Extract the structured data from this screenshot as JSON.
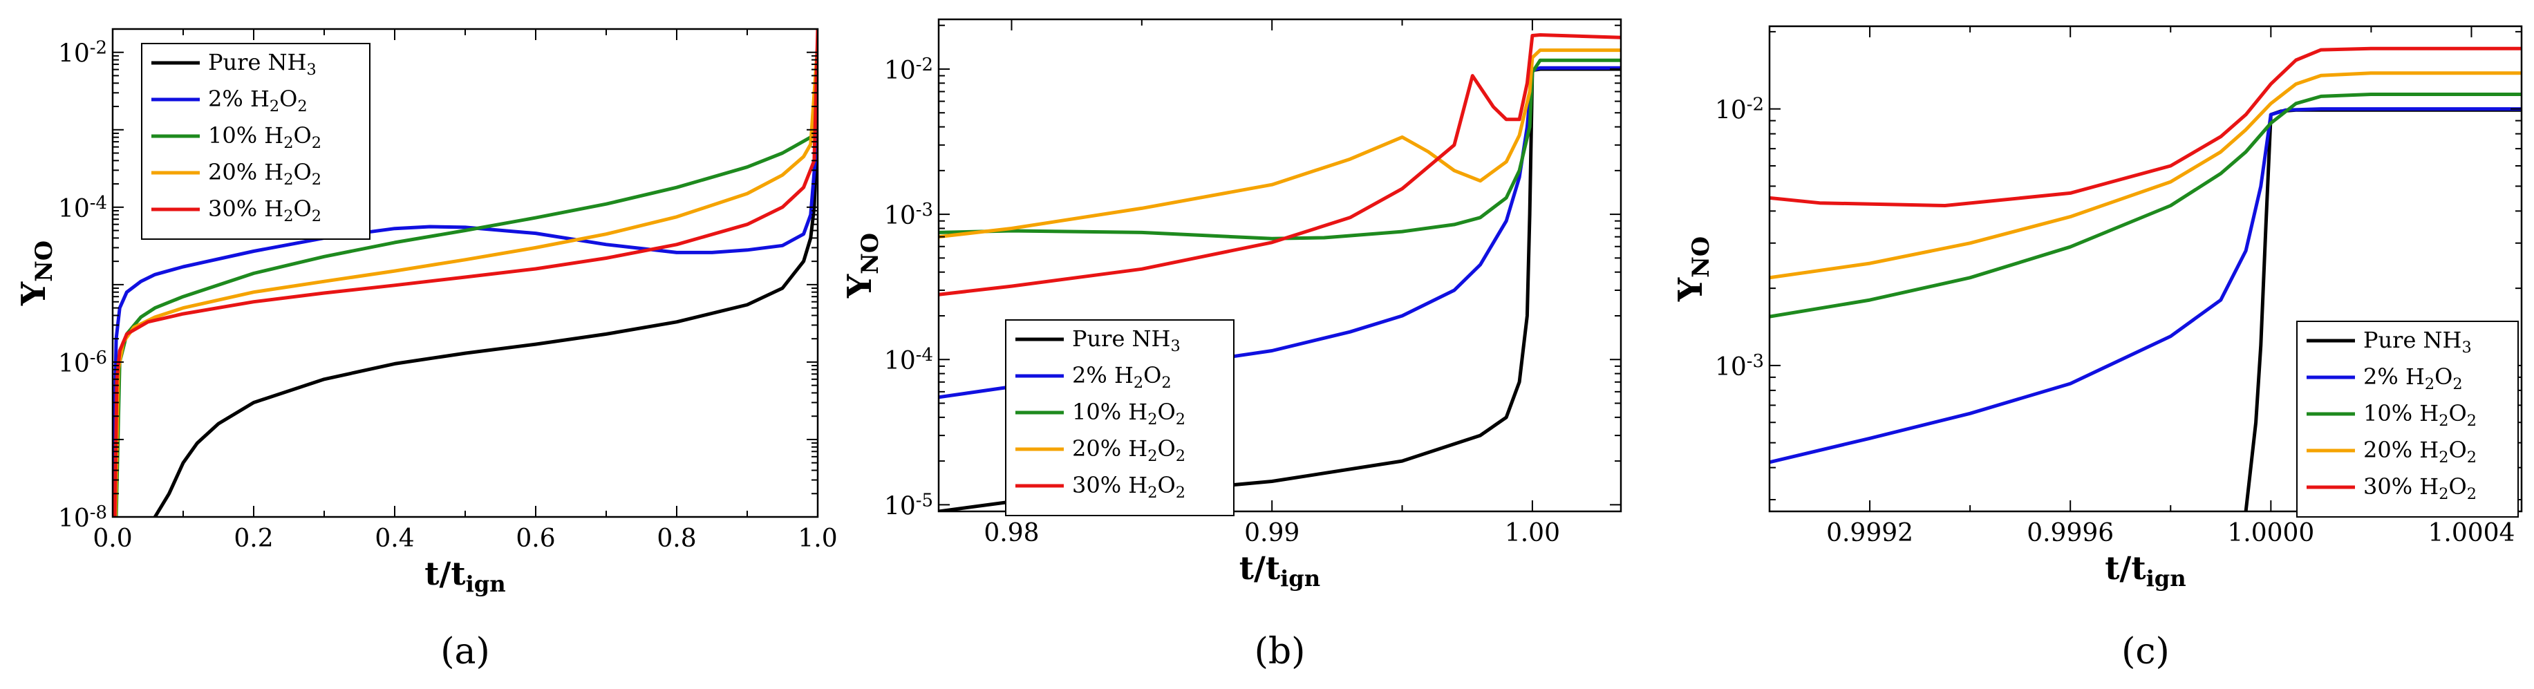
{
  "colors": {
    "pure": "#000000",
    "h2o2_2": "#1010e0",
    "h2o2_10": "#1e8a1e",
    "h2o2_20": "#f5a300",
    "h2o2_30": "#e81414"
  },
  "chart_data": [
    {
      "type": "line",
      "panel_label": "(a)",
      "xlabel": "t/t",
      "xlabel_sub": "ign",
      "ylabel": "Y",
      "ylabel_sub": "NO",
      "yscale": "log",
      "xlim": [
        0.0,
        1.0
      ],
      "ylim": [
        1e-08,
        0.02
      ],
      "xticks": [
        0.0,
        0.2,
        0.4,
        0.6,
        0.8,
        1.0
      ],
      "xtick_labels": [
        "0.0",
        "0.2",
        "0.4",
        "0.6",
        "0.8",
        "1.0"
      ],
      "yticks": [
        1e-08,
        1e-06,
        0.0001,
        0.01
      ],
      "ytick_mantissa": [
        "10",
        "10",
        "10",
        "10"
      ],
      "ytick_exp": [
        "-8",
        "-6",
        "-4",
        "-2"
      ],
      "legend_position": "top-left",
      "series": [
        {
          "name": "Pure NH",
          "sub": "3",
          "color_key": "pure",
          "x": [
            0.06,
            0.08,
            0.1,
            0.12,
            0.15,
            0.2,
            0.3,
            0.4,
            0.5,
            0.6,
            0.7,
            0.8,
            0.9,
            0.95,
            0.98,
            0.99,
            0.995,
            0.998,
            1.0
          ],
          "y": [
            1e-08,
            2e-08,
            5e-08,
            9e-08,
            1.6e-07,
            3e-07,
            6e-07,
            9.5e-07,
            1.3e-06,
            1.7e-06,
            2.3e-06,
            3.3e-06,
            5.5e-06,
            9e-06,
            2e-05,
            4e-05,
            0.0001,
            0.0005,
            0.015
          ]
        },
        {
          "name": "  2% H",
          "sub": "2",
          "name2": "O",
          "sub2": "2",
          "color_key": "h2o2_2",
          "x": [
            0.0,
            0.005,
            0.01,
            0.02,
            0.04,
            0.06,
            0.1,
            0.2,
            0.3,
            0.4,
            0.45,
            0.5,
            0.6,
            0.7,
            0.8,
            0.85,
            0.9,
            0.95,
            0.98,
            0.99,
            1.0
          ],
          "y": [
            1e-08,
            2e-06,
            5e-06,
            8e-06,
            1.1e-05,
            1.35e-05,
            1.7e-05,
            2.7e-05,
            4e-05,
            5.3e-05,
            5.6e-05,
            5.5e-05,
            4.6e-05,
            3.3e-05,
            2.6e-05,
            2.6e-05,
            2.8e-05,
            3.2e-05,
            4.5e-05,
            8e-05,
            0.001
          ]
        },
        {
          "name": "10% H",
          "sub": "2",
          "name2": "O",
          "sub2": "2",
          "color_key": "h2o2_10",
          "x": [
            0.005,
            0.01,
            0.02,
            0.04,
            0.06,
            0.1,
            0.2,
            0.3,
            0.4,
            0.5,
            0.6,
            0.7,
            0.8,
            0.9,
            0.95,
            0.99,
            1.0
          ],
          "y": [
            1e-08,
            1e-06,
            2.3e-06,
            3.8e-06,
            5e-06,
            7e-06,
            1.4e-05,
            2.3e-05,
            3.5e-05,
            5e-05,
            7.3e-05,
            0.00011,
            0.00018,
            0.00033,
            0.0005,
            0.0008,
            0.0012
          ]
        },
        {
          "name": "20% H",
          "sub": "2",
          "name2": "O",
          "sub2": "2",
          "color_key": "h2o2_20",
          "x": [
            0.004,
            0.008,
            0.015,
            0.03,
            0.06,
            0.1,
            0.2,
            0.3,
            0.4,
            0.5,
            0.6,
            0.7,
            0.8,
            0.9,
            0.95,
            0.98,
            0.99,
            1.0
          ],
          "y": [
            1e-08,
            8e-07,
            1.8e-06,
            2.8e-06,
            3.8e-06,
            5e-06,
            8e-06,
            1.1e-05,
            1.5e-05,
            2.1e-05,
            3e-05,
            4.5e-05,
            7.5e-05,
            0.00015,
            0.00026,
            0.00045,
            0.00065,
            0.013
          ]
        },
        {
          "name": "30% H",
          "sub": "2",
          "name2": "O",
          "sub2": "2",
          "color_key": "h2o2_30",
          "x": [
            0.003,
            0.006,
            0.01,
            0.02,
            0.05,
            0.1,
            0.2,
            0.3,
            0.4,
            0.5,
            0.6,
            0.7,
            0.8,
            0.9,
            0.95,
            0.98,
            0.995,
            1.0
          ],
          "y": [
            1e-08,
            6e-07,
            1.4e-06,
            2.3e-06,
            3.3e-06,
            4.2e-06,
            6e-06,
            7.8e-06,
            9.8e-06,
            1.25e-05,
            1.6e-05,
            2.2e-05,
            3.3e-05,
            6e-05,
            0.0001,
            0.00018,
            0.0004,
            0.02
          ]
        }
      ]
    },
    {
      "type": "line",
      "panel_label": "(b)",
      "xlabel": "t/t",
      "xlabel_sub": "ign",
      "ylabel": "Y",
      "ylabel_sub": "NO",
      "yscale": "log",
      "xlim": [
        0.9772,
        1.0034
      ],
      "ylim": [
        9e-06,
        0.022
      ],
      "xticks": [
        0.98,
        0.99,
        1.0
      ],
      "xtick_labels": [
        "0.98",
        "0.99",
        "1.00"
      ],
      "yticks": [
        1e-05,
        0.0001,
        0.001,
        0.01
      ],
      "ytick_mantissa": [
        "10",
        "10",
        "10",
        "10"
      ],
      "ytick_exp": [
        "-5",
        "-4",
        "-3",
        "-2"
      ],
      "legend_position": "bottom-left",
      "series": [
        {
          "name": "Pure NH",
          "sub": "3",
          "color_key": "pure",
          "x": [
            0.9772,
            0.98,
            0.985,
            0.99,
            0.995,
            0.998,
            0.999,
            0.9995,
            0.9998,
            0.9999,
            1.0,
            1.0003,
            1.0034
          ],
          "y": [
            9e-06,
            1.05e-05,
            1.2e-05,
            1.45e-05,
            2e-05,
            3e-05,
            4e-05,
            7e-05,
            0.0002,
            0.001,
            0.0098,
            0.01,
            0.01
          ]
        },
        {
          "name": "  2% H",
          "sub": "2",
          "name2": "O",
          "sub2": "2",
          "color_key": "h2o2_2",
          "x": [
            0.9772,
            0.98,
            0.985,
            0.99,
            0.993,
            0.995,
            0.997,
            0.998,
            0.999,
            0.9995,
            0.9998,
            1.0,
            1.0003,
            1.0034
          ],
          "y": [
            5.5e-05,
            6.5e-05,
            8.5e-05,
            0.000115,
            0.000155,
            0.0002,
            0.0003,
            0.00045,
            0.0009,
            0.0018,
            0.004,
            0.0098,
            0.0102,
            0.0102
          ]
        },
        {
          "name": "10% H",
          "sub": "2",
          "name2": "O",
          "sub2": "2",
          "color_key": "h2o2_10",
          "x": [
            0.9772,
            0.98,
            0.985,
            0.99,
            0.992,
            0.995,
            0.997,
            0.998,
            0.999,
            0.9995,
            0.9999,
            1.0,
            1.0003,
            1.0034
          ],
          "y": [
            0.00075,
            0.00077,
            0.00075,
            0.00068,
            0.00069,
            0.00076,
            0.00085,
            0.00095,
            0.0013,
            0.002,
            0.004,
            0.0095,
            0.0115,
            0.0115
          ]
        },
        {
          "name": "20% H",
          "sub": "2",
          "name2": "O",
          "sub2": "2",
          "color_key": "h2o2_20",
          "x": [
            0.9772,
            0.98,
            0.985,
            0.99,
            0.993,
            0.995,
            0.996,
            0.997,
            0.998,
            0.999,
            0.9995,
            0.9999,
            1.0,
            1.0003,
            1.0034
          ],
          "y": [
            0.0007,
            0.0008,
            0.0011,
            0.0016,
            0.0024,
            0.0034,
            0.0027,
            0.002,
            0.0017,
            0.0023,
            0.0035,
            0.007,
            0.012,
            0.0135,
            0.0135
          ]
        },
        {
          "name": "30% H",
          "sub": "2",
          "name2": "O",
          "sub2": "2",
          "color_key": "h2o2_30",
          "x": [
            0.9772,
            0.98,
            0.985,
            0.99,
            0.993,
            0.995,
            0.997,
            0.9977,
            0.9985,
            0.999,
            0.9995,
            0.9998,
            1.0,
            1.0003,
            1.0034
          ],
          "y": [
            0.00028,
            0.00032,
            0.00042,
            0.00064,
            0.00095,
            0.0015,
            0.003,
            0.009,
            0.0055,
            0.0045,
            0.0045,
            0.008,
            0.017,
            0.0172,
            0.0165
          ]
        }
      ]
    },
    {
      "type": "line",
      "panel_label": "(c)",
      "xlabel": "t/t",
      "xlabel_sub": "ign",
      "ylabel": "Y",
      "ylabel_sub": "NO",
      "yscale": "log",
      "xlim": [
        0.999,
        1.0005
      ],
      "ylim": [
        0.00027,
        0.021
      ],
      "xticks": [
        0.9992,
        0.9996,
        1.0,
        1.0004
      ],
      "xtick_labels": [
        "0.9992",
        "0.9996",
        "1.0000",
        "1.0004"
      ],
      "yticks": [
        0.001,
        0.01
      ],
      "ytick_mantissa": [
        "10",
        "10"
      ],
      "ytick_exp": [
        "-3",
        "-2"
      ],
      "legend_position": "bottom-right",
      "series": [
        {
          "name": "Pure NH",
          "sub": "3",
          "color_key": "pure",
          "x": [
            0.99995,
            0.99997,
            0.99998,
            0.99999,
            1.0,
            1.00002,
            1.00005,
            1.0005
          ],
          "y": [
            0.00027,
            0.0006,
            0.0012,
            0.0035,
            0.0095,
            0.0098,
            0.0099,
            0.0099
          ]
        },
        {
          "name": "  2% H",
          "sub": "2",
          "name2": "O",
          "sub2": "2",
          "color_key": "h2o2_2",
          "x": [
            0.999,
            0.9992,
            0.9994,
            0.9996,
            0.9998,
            0.9999,
            0.99995,
            0.99998,
            1.0,
            1.00003,
            1.0001,
            1.0005
          ],
          "y": [
            0.00042,
            0.00052,
            0.00065,
            0.00085,
            0.0013,
            0.0018,
            0.0028,
            0.005,
            0.0095,
            0.0099,
            0.01,
            0.01
          ]
        },
        {
          "name": "10% H",
          "sub": "2",
          "name2": "O",
          "sub2": "2",
          "color_key": "h2o2_10",
          "x": [
            0.999,
            0.9992,
            0.9994,
            0.9996,
            0.9998,
            0.9999,
            0.99995,
            1.0,
            1.00005,
            1.0001,
            1.0002,
            1.0005
          ],
          "y": [
            0.00155,
            0.0018,
            0.0022,
            0.0029,
            0.0042,
            0.0056,
            0.0068,
            0.0088,
            0.0105,
            0.0112,
            0.0114,
            0.0114
          ]
        },
        {
          "name": "20% H",
          "sub": "2",
          "name2": "O",
          "sub2": "2",
          "color_key": "h2o2_20",
          "x": [
            0.999,
            0.9992,
            0.9994,
            0.9996,
            0.9998,
            0.9999,
            0.99995,
            1.0,
            1.00005,
            1.0001,
            1.0002,
            1.0005
          ],
          "y": [
            0.0022,
            0.0025,
            0.003,
            0.0038,
            0.0052,
            0.0068,
            0.0083,
            0.0105,
            0.0125,
            0.0135,
            0.0138,
            0.0138
          ]
        },
        {
          "name": "30% H",
          "sub": "2",
          "name2": "O",
          "sub2": "2",
          "color_key": "h2o2_30",
          "x": [
            0.999,
            0.9991,
            0.99935,
            0.9996,
            0.9998,
            0.9999,
            0.99995,
            1.0,
            1.00005,
            1.0001,
            1.0002,
            1.0005
          ],
          "y": [
            0.0045,
            0.0043,
            0.0042,
            0.0047,
            0.006,
            0.0078,
            0.0095,
            0.0125,
            0.0155,
            0.017,
            0.0172,
            0.0172
          ]
        }
      ]
    }
  ]
}
